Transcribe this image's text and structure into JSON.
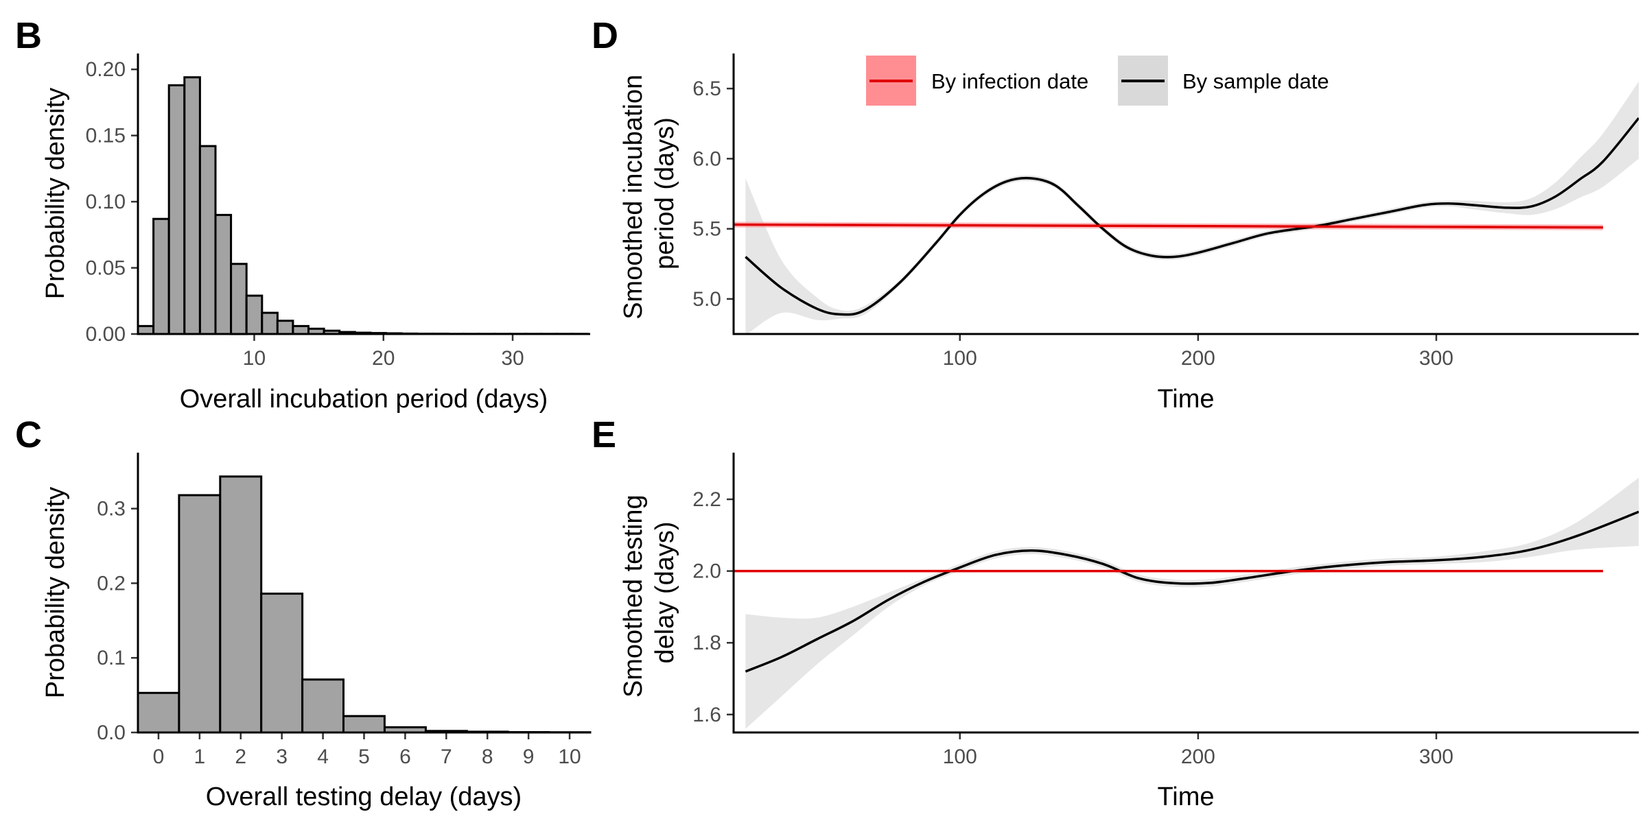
{
  "chart_data": [
    {
      "panel": "B",
      "type": "bar",
      "xlabel": "Overall incubation period (days)",
      "ylabel": "Probability density",
      "xlim": [
        1,
        36
      ],
      "ylim": [
        0,
        0.212
      ],
      "xticks": [
        10,
        20,
        30
      ],
      "yticks": [
        0.0,
        0.05,
        0.1,
        0.15,
        0.2
      ],
      "ytick_labels": [
        "0.00",
        "0.05",
        "0.10",
        "0.15",
        "0.20"
      ],
      "bin_width": 1.2,
      "bin_start": 1,
      "values": [
        0.006,
        0.087,
        0.188,
        0.194,
        0.142,
        0.09,
        0.053,
        0.029,
        0.016,
        0.01,
        0.006,
        0.004,
        0.0025,
        0.0015,
        0.001,
        0.0007,
        0.0005,
        0.0003,
        0.0002,
        0.0002,
        0.0001,
        0.0001,
        0.0001,
        0.0001,
        0.0001,
        0.0001,
        0.0001,
        0.0001,
        0.0001
      ]
    },
    {
      "panel": "C",
      "type": "bar",
      "xlabel": "Overall testing delay (days)",
      "ylabel": "Probability density",
      "xlim": [
        -0.5,
        10.5
      ],
      "ylim": [
        0,
        0.375
      ],
      "xticks": [
        0,
        1,
        2,
        3,
        4,
        5,
        6,
        7,
        8,
        9,
        10
      ],
      "xtick_labels": [
        "0",
        "1",
        "2",
        "3",
        "4",
        "5",
        "6",
        "7",
        "8",
        "9",
        "10"
      ],
      "yticks": [
        0.0,
        0.1,
        0.2,
        0.3
      ],
      "ytick_labels": [
        "0.0",
        "0.1",
        "0.2",
        "0.3"
      ],
      "categories": [
        0,
        1,
        2,
        3,
        4,
        5,
        6,
        7,
        8,
        9,
        10
      ],
      "values": [
        0.053,
        0.318,
        0.343,
        0.186,
        0.071,
        0.022,
        0.007,
        0.002,
        0.001,
        0.0005,
        0.0003
      ]
    },
    {
      "panel": "D",
      "type": "line",
      "xlabel": "Time",
      "ylabel_lines": [
        "Smoothed incubation",
        "period (days)"
      ],
      "xlim": [
        5,
        385
      ],
      "ylim": [
        4.75,
        6.75
      ],
      "xticks": [
        100,
        200,
        300
      ],
      "yticks": [
        5.0,
        5.5,
        6.0,
        6.5
      ],
      "ytick_labels": [
        "5.0",
        "5.5",
        "6.0",
        "6.5"
      ],
      "legend": {
        "position": "top",
        "entries": [
          {
            "label": "By infection date",
            "color": "#e00000",
            "fill": "#ff8e93"
          },
          {
            "label": "By sample date",
            "color": "#000000",
            "fill": "#d9d9d9"
          }
        ]
      },
      "series": [
        {
          "name": "By sample date",
          "color": "#000000",
          "x": [
            10,
            25,
            40,
            50,
            60,
            75,
            90,
            100,
            110,
            120,
            130,
            140,
            150,
            160,
            170,
            180,
            190,
            200,
            215,
            230,
            250,
            265,
            280,
            295,
            305,
            315,
            330,
            340,
            350,
            360,
            370,
            385
          ],
          "y": [
            5.3,
            5.08,
            4.93,
            4.89,
            4.92,
            5.12,
            5.4,
            5.6,
            5.75,
            5.84,
            5.86,
            5.81,
            5.66,
            5.5,
            5.37,
            5.31,
            5.3,
            5.33,
            5.4,
            5.47,
            5.52,
            5.57,
            5.62,
            5.67,
            5.68,
            5.67,
            5.65,
            5.66,
            5.73,
            5.85,
            5.98,
            6.29
          ],
          "lower": [
            4.74,
            4.9,
            4.85,
            4.86,
            4.89,
            5.1,
            5.38,
            5.58,
            5.73,
            5.82,
            5.84,
            5.79,
            5.64,
            5.48,
            5.35,
            5.29,
            5.28,
            5.31,
            5.38,
            5.45,
            5.5,
            5.55,
            5.6,
            5.65,
            5.66,
            5.64,
            5.61,
            5.6,
            5.64,
            5.72,
            5.8,
            6.0
          ],
          "upper": [
            5.86,
            5.28,
            5.01,
            4.92,
            4.95,
            5.14,
            5.42,
            5.62,
            5.77,
            5.86,
            5.88,
            5.83,
            5.68,
            5.52,
            5.39,
            5.33,
            5.32,
            5.35,
            5.42,
            5.49,
            5.54,
            5.59,
            5.64,
            5.69,
            5.7,
            5.7,
            5.69,
            5.72,
            5.83,
            6.0,
            6.18,
            6.55
          ]
        },
        {
          "name": "By infection date",
          "color": "#e00000",
          "x": [
            5,
            370
          ],
          "y": [
            5.53,
            5.51
          ],
          "lower": [
            5.51,
            5.49
          ],
          "upper": [
            5.55,
            5.53
          ]
        }
      ]
    },
    {
      "panel": "E",
      "type": "line",
      "xlabel": "Time",
      "ylabel_lines": [
        "Smoothed testing",
        "delay (days)"
      ],
      "xlim": [
        5,
        385
      ],
      "ylim": [
        1.55,
        2.33
      ],
      "xticks": [
        100,
        200,
        300
      ],
      "yticks": [
        1.6,
        1.8,
        2.0,
        2.2
      ],
      "ytick_labels": [
        "1.6",
        "1.8",
        "2.0",
        "2.2"
      ],
      "series": [
        {
          "name": "By sample date",
          "color": "#000000",
          "x": [
            10,
            25,
            40,
            55,
            70,
            85,
            100,
            115,
            130,
            145,
            160,
            175,
            190,
            205,
            220,
            240,
            260,
            280,
            300,
            320,
            340,
            360,
            385
          ],
          "y": [
            1.72,
            1.76,
            1.81,
            1.86,
            1.92,
            1.97,
            2.01,
            2.045,
            2.057,
            2.045,
            2.02,
            1.98,
            1.966,
            1.967,
            1.98,
            2.0,
            2.015,
            2.025,
            2.03,
            2.04,
            2.06,
            2.1,
            2.165
          ],
          "lower": [
            1.56,
            1.65,
            1.74,
            1.82,
            1.9,
            1.96,
            2.0,
            2.035,
            2.047,
            2.035,
            2.01,
            1.97,
            1.956,
            1.957,
            1.97,
            1.99,
            2.005,
            2.015,
            2.02,
            2.025,
            2.04,
            2.06,
            2.07
          ],
          "upper": [
            1.88,
            1.87,
            1.87,
            1.9,
            1.94,
            1.98,
            2.02,
            2.055,
            2.067,
            2.055,
            2.03,
            1.99,
            1.976,
            1.977,
            1.99,
            2.01,
            2.025,
            2.035,
            2.04,
            2.055,
            2.08,
            2.14,
            2.26
          ]
        },
        {
          "name": "By infection date",
          "color": "#e00000",
          "x": [
            5,
            370
          ],
          "y": [
            2.0,
            2.0
          ],
          "lower": [
            1.997,
            1.997
          ],
          "upper": [
            2.003,
            2.003
          ]
        }
      ]
    }
  ]
}
